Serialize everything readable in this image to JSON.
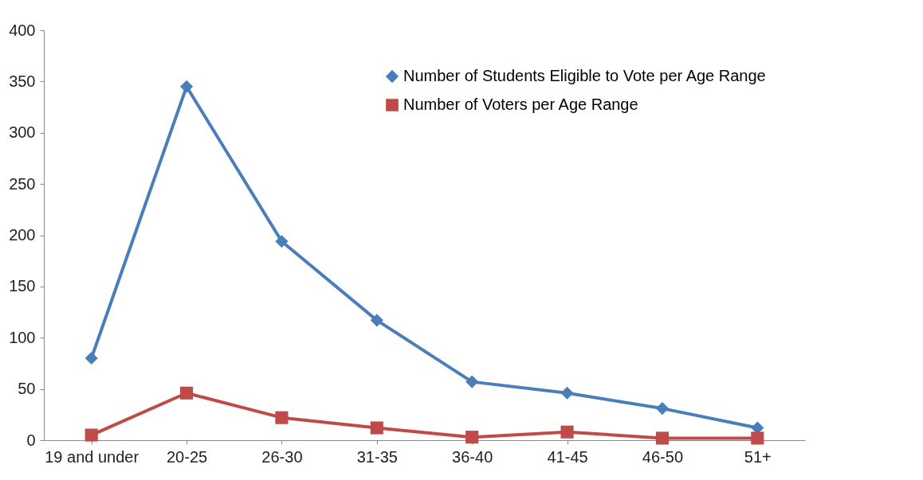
{
  "chart_data": {
    "type": "line",
    "categories": [
      "19 and under",
      "20-25",
      "26-30",
      "31-35",
      "36-40",
      "41-45",
      "46-50",
      "51+"
    ],
    "series": [
      {
        "name": "Number of Students Eligible to Vote per Age Range",
        "color": "#4a7ebb",
        "marker": "diamond",
        "values": [
          80,
          345,
          194,
          117,
          57,
          46,
          31,
          12
        ]
      },
      {
        "name": "Number of Voters per Age Range",
        "color": "#be4b48",
        "marker": "square",
        "values": [
          5,
          46,
          22,
          12,
          3,
          8,
          2,
          2
        ]
      }
    ],
    "ylim": [
      0,
      400
    ],
    "yticks": [
      0,
      50,
      100,
      150,
      200,
      250,
      300,
      350,
      400
    ],
    "grid": false,
    "legend": "top right"
  }
}
